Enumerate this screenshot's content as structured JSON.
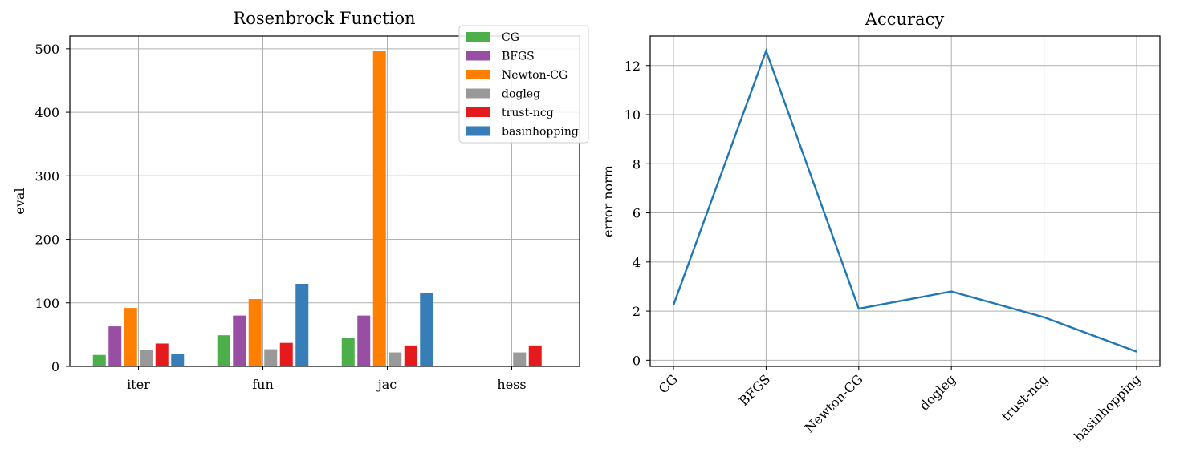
{
  "chart_data": [
    {
      "type": "bar",
      "title": "Rosenbrock Function",
      "xlabel": "",
      "ylabel": "eval",
      "categories": [
        "iter",
        "fun",
        "jac",
        "hess"
      ],
      "ylim": [
        0,
        520
      ],
      "yticks": [
        0,
        100,
        200,
        300,
        400,
        500
      ],
      "grid": true,
      "legend_position": "top-right",
      "series": [
        {
          "name": "CG",
          "color": "#4daf4a",
          "values": [
            18,
            49,
            45,
            null
          ]
        },
        {
          "name": "BFGS",
          "color": "#984ea3",
          "values": [
            63,
            80,
            80,
            null
          ]
        },
        {
          "name": "Newton-CG",
          "color": "#ff7f00",
          "values": [
            92,
            106,
            496,
            null
          ]
        },
        {
          "name": "dogleg",
          "color": "#999999",
          "values": [
            26,
            27,
            22,
            22
          ]
        },
        {
          "name": "trust-ncg",
          "color": "#e41a1c",
          "values": [
            36,
            37,
            33,
            33
          ]
        },
        {
          "name": "basinhopping",
          "color": "#377eb8",
          "values": [
            19,
            130,
            116,
            null
          ]
        }
      ]
    },
    {
      "type": "line",
      "title": "Accuracy",
      "xlabel": "",
      "ylabel": "error norm",
      "categories": [
        "CG",
        "BFGS",
        "Newton-CG",
        "dogleg",
        "trust-ncg",
        "basinhopping"
      ],
      "ylim": [
        -0.25,
        13.2
      ],
      "yticks": [
        0,
        2,
        4,
        6,
        8,
        10,
        12
      ],
      "grid": true,
      "series": [
        {
          "color": "#1f77b4",
          "values": [
            2.25,
            12.6,
            2.1,
            2.8,
            1.75,
            0.35
          ]
        }
      ]
    }
  ]
}
